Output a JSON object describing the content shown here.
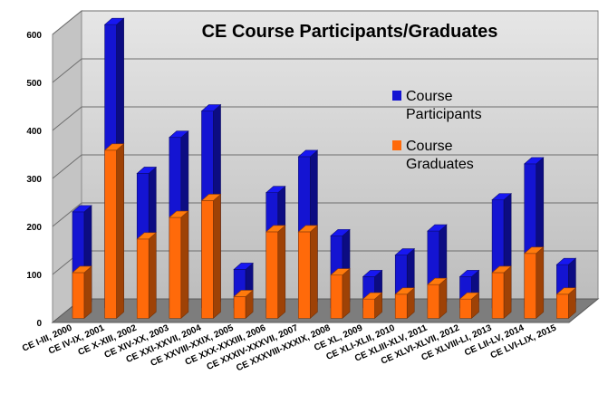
{
  "chart_data": {
    "type": "bar",
    "title": "CE Course Participants/Graduates",
    "xlabel": "",
    "ylabel": "",
    "ylim": [
      0,
      600
    ],
    "yticks": [
      "0",
      "100",
      "200",
      "300",
      "400",
      "500",
      "600"
    ],
    "grid": true,
    "legend_position": "right",
    "categories": [
      "CE I-III, 2000",
      "CE IV-IX, 2001",
      "CE X-XIII, 2002",
      "CE XIV-XX, 2003",
      "CE XXI-XXVII, 2004",
      "CE XXVIII-XXIX, 2005",
      "CE XXX-XXXIII, 2006",
      "CE XXXIV-XXXVII, 2007",
      "CE XXXVIII-XXXIX, 2008",
      "CE XL, 2009",
      "CE XLI-XLII, 2010",
      "CE XLIII-XLV, 2011",
      "CE XLVI-XLVII, 2012",
      "CE XLVIII-LI, 2013",
      "CE LII-LV, 2014",
      "CE LVI-LIX, 2015"
    ],
    "series": [
      {
        "name": "Course Participants",
        "color": "#1414d2",
        "values": [
          200,
          590,
          280,
          355,
          410,
          80,
          240,
          315,
          150,
          65,
          110,
          160,
          65,
          225,
          300,
          90
        ]
      },
      {
        "name": "Course Graduates",
        "color": "#ff6a0a",
        "values": [
          95,
          350,
          165,
          210,
          245,
          45,
          180,
          180,
          90,
          40,
          50,
          70,
          40,
          95,
          135,
          50
        ]
      }
    ],
    "legend": [
      {
        "lines": [
          "Course",
          "Participants"
        ],
        "color": "#1414d2"
      },
      {
        "lines": [
          "Course",
          "Graduates"
        ],
        "color": "#ff6a0a"
      }
    ]
  }
}
